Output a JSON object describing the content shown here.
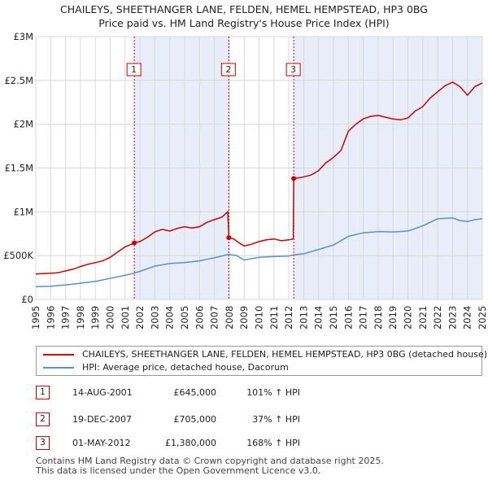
{
  "title_line1": "CHAILEYS, SHEETHANGER LANE, FELDEN, HEMEL HEMPSTEAD, HP3 0BG",
  "title_line2": "Price paid vs. HM Land Registry's House Price Index (HPI)",
  "colors": {
    "property": "#cc0000",
    "hpi": "#5b8fc9",
    "shade": "#e8eef9",
    "vline": "#cc0000",
    "grid": "#d8d8d8"
  },
  "chart_data": {
    "type": "line",
    "title": "Price paid vs. HM Land Registry's House Price Index (HPI)",
    "xlabel": "",
    "ylabel": "",
    "xlim": [
      1995,
      2025
    ],
    "ylim": [
      0,
      3000000
    ],
    "y_ticks": [
      0,
      500000,
      1000000,
      1500000,
      2000000,
      2500000,
      3000000
    ],
    "y_tick_labels": [
      "£0",
      "£500K",
      "£1M",
      "£1.5M",
      "£2M",
      "£2.5M",
      "£3M"
    ],
    "x_ticks": [
      1995,
      1996,
      1997,
      1998,
      1999,
      2000,
      2001,
      2002,
      2003,
      2004,
      2005,
      2006,
      2007,
      2008,
      2009,
      2010,
      2011,
      2012,
      2013,
      2014,
      2015,
      2016,
      2017,
      2018,
      2019,
      2020,
      2021,
      2022,
      2023,
      2024,
      2025
    ],
    "x_tick_labels": [
      "1995",
      "1996",
      "1997",
      "1998",
      "1999",
      "2000",
      "2001",
      "2002",
      "2003",
      "2004",
      "2005",
      "2006",
      "2007",
      "2008",
      "2009",
      "2010",
      "2011",
      "2012",
      "2013",
      "2014",
      "2015",
      "2016",
      "2017",
      "2018",
      "2019",
      "2020",
      "2021",
      "2022",
      "2023",
      "2024",
      "2025"
    ],
    "shaded_periods": [
      [
        2001.62,
        2007.97
      ],
      [
        2012.33,
        2025
      ]
    ],
    "series": [
      {
        "name": "CHAILEYS, SHEETHANGER LANE, FELDEN, HEMEL HEMPSTEAD, HP3 0BG (detached house)",
        "color": "#cc0000",
        "points": [
          [
            1995.0,
            290000
          ],
          [
            1995.5,
            295000
          ],
          [
            1996.0,
            298000
          ],
          [
            1996.5,
            305000
          ],
          [
            1997.0,
            325000
          ],
          [
            1997.5,
            345000
          ],
          [
            1998.0,
            375000
          ],
          [
            1998.5,
            400000
          ],
          [
            1999.0,
            420000
          ],
          [
            1999.5,
            440000
          ],
          [
            2000.0,
            480000
          ],
          [
            2000.5,
            540000
          ],
          [
            2001.0,
            600000
          ],
          [
            2001.3,
            620000
          ],
          [
            2001.62,
            645000
          ],
          [
            2002.0,
            660000
          ],
          [
            2002.5,
            710000
          ],
          [
            2003.0,
            770000
          ],
          [
            2003.5,
            800000
          ],
          [
            2004.0,
            780000
          ],
          [
            2004.5,
            810000
          ],
          [
            2005.0,
            830000
          ],
          [
            2005.5,
            815000
          ],
          [
            2006.0,
            830000
          ],
          [
            2006.5,
            880000
          ],
          [
            2007.0,
            910000
          ],
          [
            2007.5,
            940000
          ],
          [
            2007.9,
            1000000
          ],
          [
            2007.97,
            705000
          ],
          [
            2008.3,
            690000
          ],
          [
            2008.7,
            640000
          ],
          [
            2009.0,
            610000
          ],
          [
            2009.5,
            630000
          ],
          [
            2010.0,
            660000
          ],
          [
            2010.5,
            680000
          ],
          [
            2011.0,
            690000
          ],
          [
            2011.5,
            670000
          ],
          [
            2012.0,
            680000
          ],
          [
            2012.3,
            690000
          ],
          [
            2012.33,
            1380000
          ],
          [
            2012.8,
            1390000
          ],
          [
            2013.5,
            1420000
          ],
          [
            2014.0,
            1470000
          ],
          [
            2014.5,
            1560000
          ],
          [
            2015.0,
            1620000
          ],
          [
            2015.5,
            1700000
          ],
          [
            2016.0,
            1920000
          ],
          [
            2016.5,
            2000000
          ],
          [
            2017.0,
            2060000
          ],
          [
            2017.5,
            2090000
          ],
          [
            2018.0,
            2100000
          ],
          [
            2018.5,
            2080000
          ],
          [
            2019.0,
            2060000
          ],
          [
            2019.5,
            2050000
          ],
          [
            2020.0,
            2070000
          ],
          [
            2020.5,
            2150000
          ],
          [
            2021.0,
            2200000
          ],
          [
            2021.5,
            2300000
          ],
          [
            2022.0,
            2370000
          ],
          [
            2022.5,
            2440000
          ],
          [
            2023.0,
            2480000
          ],
          [
            2023.5,
            2430000
          ],
          [
            2024.0,
            2330000
          ],
          [
            2024.5,
            2430000
          ],
          [
            2025.0,
            2470000
          ]
        ]
      },
      {
        "name": "HPI: Average price, detached house, Dacorum",
        "color": "#5b8fc9",
        "points": [
          [
            1995.0,
            145000
          ],
          [
            1996.0,
            150000
          ],
          [
            1997.0,
            165000
          ],
          [
            1998.0,
            185000
          ],
          [
            1999.0,
            205000
          ],
          [
            2000.0,
            240000
          ],
          [
            2001.0,
            275000
          ],
          [
            2001.62,
            300000
          ],
          [
            2002.0,
            320000
          ],
          [
            2003.0,
            380000
          ],
          [
            2004.0,
            410000
          ],
          [
            2005.0,
            420000
          ],
          [
            2006.0,
            440000
          ],
          [
            2007.0,
            475000
          ],
          [
            2007.97,
            515000
          ],
          [
            2008.5,
            500000
          ],
          [
            2009.0,
            450000
          ],
          [
            2010.0,
            480000
          ],
          [
            2011.0,
            490000
          ],
          [
            2012.0,
            495000
          ],
          [
            2012.33,
            510000
          ],
          [
            2013.0,
            520000
          ],
          [
            2014.0,
            570000
          ],
          [
            2015.0,
            620000
          ],
          [
            2016.0,
            720000
          ],
          [
            2017.0,
            760000
          ],
          [
            2018.0,
            775000
          ],
          [
            2019.0,
            770000
          ],
          [
            2020.0,
            780000
          ],
          [
            2021.0,
            840000
          ],
          [
            2022.0,
            920000
          ],
          [
            2023.0,
            930000
          ],
          [
            2023.5,
            900000
          ],
          [
            2024.0,
            890000
          ],
          [
            2024.5,
            910000
          ],
          [
            2025.0,
            920000
          ]
        ]
      }
    ],
    "sales": [
      {
        "marker": "1",
        "x": 2001.62,
        "price": 645000
      },
      {
        "marker": "2",
        "x": 2007.97,
        "price": 705000
      },
      {
        "marker": "3",
        "x": 2012.33,
        "price": 1380000
      }
    ]
  },
  "legend": {
    "property_label": "CHAILEYS, SHEETHANGER LANE, FELDEN, HEMEL HEMPSTEAD, HP3 0BG (detached house)",
    "hpi_label": "HPI: Average price, detached house, Dacorum"
  },
  "transactions": [
    {
      "num": "1",
      "date": "14-AUG-2001",
      "price": "£645,000",
      "pct": "101% ↑ HPI"
    },
    {
      "num": "2",
      "date": "19-DEC-2007",
      "price": "£705,000",
      "pct": "37% ↑ HPI"
    },
    {
      "num": "3",
      "date": "01-MAY-2012",
      "price": "£1,380,000",
      "pct": "168% ↑ HPI"
    }
  ],
  "footer_line1": "Contains HM Land Registry data © Crown copyright and database right 2025.",
  "footer_line2": "This data is licensed under the Open Government Licence v3.0."
}
